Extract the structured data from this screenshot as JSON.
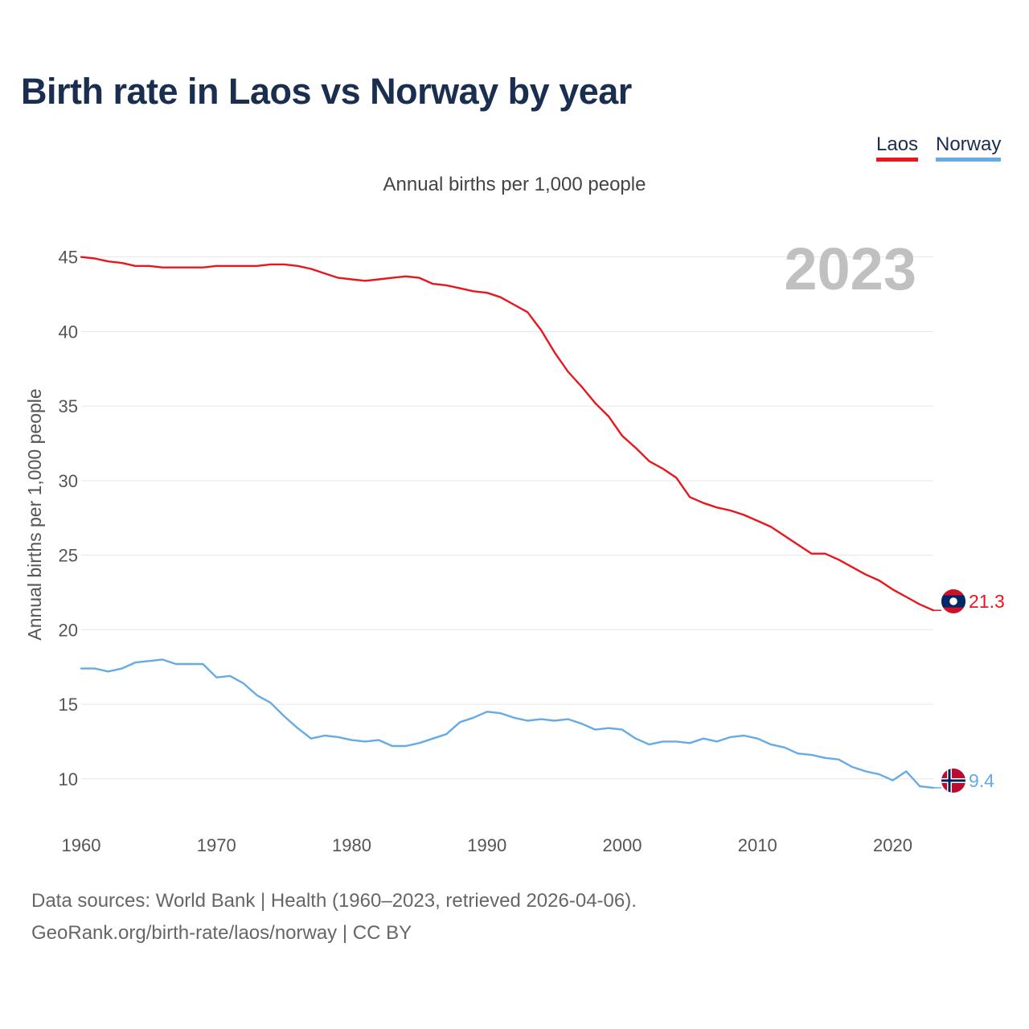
{
  "title": "Birth rate in Laos vs Norway by year",
  "legend": {
    "laos": "Laos",
    "norway": "Norway"
  },
  "footer": {
    "source": "Data sources: World Bank | Health (1960–2023, retrieved 2026-04-06).",
    "credit": "GeoRank.org/birth-rate/laos/norway | CC BY"
  },
  "colors": {
    "laos": "#e8171d",
    "norway": "#66aae6",
    "year_watermark": "#c0c0c0",
    "grid": "#e6e6e6"
  },
  "chart_data": {
    "type": "line",
    "title": "Birth rate in Laos vs Norway by year",
    "subtitle": "Annual births per 1,000 people",
    "ylabel": "Annual births per 1,000 people",
    "xlabel": "",
    "year_label": "2023",
    "xlim": [
      1960,
      2023
    ],
    "ylim": [
      6.7,
      46.6
    ],
    "x_ticks": [
      1960,
      1970,
      1980,
      1990,
      2000,
      2010,
      2020
    ],
    "y_ticks": [
      10,
      15,
      20,
      25,
      30,
      35,
      40,
      45
    ],
    "grid": true,
    "legend_position": "top-right",
    "x": [
      1960,
      1961,
      1962,
      1963,
      1964,
      1965,
      1966,
      1967,
      1968,
      1969,
      1970,
      1971,
      1972,
      1973,
      1974,
      1975,
      1976,
      1977,
      1978,
      1979,
      1980,
      1981,
      1982,
      1983,
      1984,
      1985,
      1986,
      1987,
      1988,
      1989,
      1990,
      1991,
      1992,
      1993,
      1994,
      1995,
      1996,
      1997,
      1998,
      1999,
      2000,
      2001,
      2002,
      2003,
      2004,
      2005,
      2006,
      2007,
      2008,
      2009,
      2010,
      2011,
      2012,
      2013,
      2014,
      2015,
      2016,
      2017,
      2018,
      2019,
      2020,
      2021,
      2022,
      2023
    ],
    "series": [
      {
        "name": "Laos",
        "color": "#e8171d",
        "end_label": "21.3",
        "flag": "laos-flag",
        "values": [
          45.0,
          44.9,
          44.7,
          44.6,
          44.4,
          44.4,
          44.3,
          44.3,
          44.3,
          44.3,
          44.4,
          44.4,
          44.4,
          44.4,
          44.5,
          44.5,
          44.4,
          44.2,
          43.9,
          43.6,
          43.5,
          43.4,
          43.5,
          43.6,
          43.7,
          43.6,
          43.2,
          43.1,
          42.9,
          42.7,
          42.6,
          42.3,
          41.8,
          41.3,
          40.1,
          38.6,
          37.3,
          36.3,
          35.2,
          34.3,
          33.0,
          32.2,
          31.3,
          30.8,
          30.2,
          28.9,
          28.5,
          28.2,
          28.0,
          27.7,
          27.3,
          26.9,
          26.3,
          25.7,
          25.1,
          25.1,
          24.7,
          24.2,
          23.7,
          23.3,
          22.7,
          22.2,
          21.7,
          21.3
        ]
      },
      {
        "name": "Norway",
        "color": "#66aae6",
        "end_label": "9.4",
        "flag": "norway-flag",
        "values": [
          17.4,
          17.4,
          17.2,
          17.4,
          17.8,
          17.9,
          18.0,
          17.7,
          17.7,
          17.7,
          16.8,
          16.9,
          16.4,
          15.6,
          15.1,
          14.2,
          13.4,
          12.7,
          12.9,
          12.8,
          12.6,
          12.5,
          12.6,
          12.2,
          12.2,
          12.4,
          12.7,
          13.0,
          13.8,
          14.1,
          14.5,
          14.4,
          14.1,
          13.9,
          14.0,
          13.9,
          14.0,
          13.7,
          13.3,
          13.4,
          13.3,
          12.7,
          12.3,
          12.5,
          12.5,
          12.4,
          12.7,
          12.5,
          12.8,
          12.9,
          12.7,
          12.3,
          12.1,
          11.7,
          11.6,
          11.4,
          11.3,
          10.8,
          10.5,
          10.3,
          9.9,
          10.5,
          9.5,
          9.4
        ]
      }
    ]
  }
}
